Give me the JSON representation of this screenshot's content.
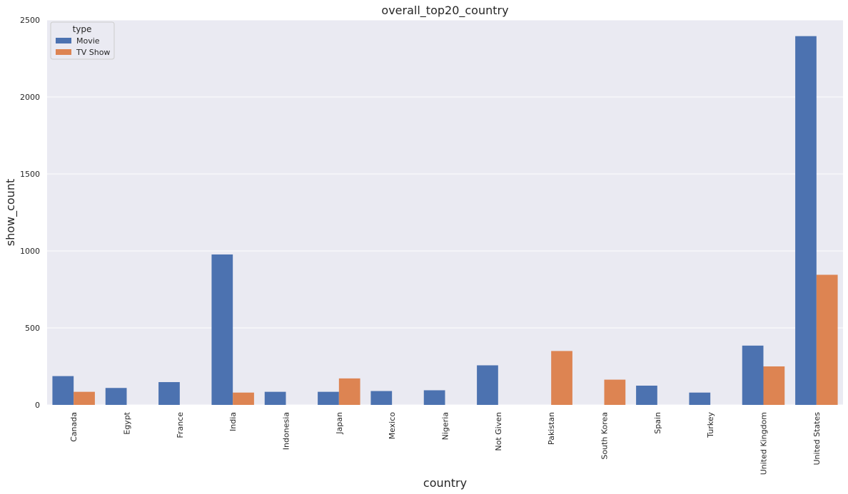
{
  "chart_data": {
    "type": "bar",
    "title": "overall_top20_country",
    "xlabel": "country",
    "ylabel": "show_count",
    "ylim": [
      0,
      2500
    ],
    "yticks": [
      0,
      500,
      1000,
      1500,
      2000,
      2500
    ],
    "grid": true,
    "legend": {
      "title": "type",
      "position": "top-left"
    },
    "categories": [
      "Canada",
      "Egypt",
      "France",
      "India",
      "Indonesia",
      "Japan",
      "Mexico",
      "Nigeria",
      "Not Given",
      "Pakistan",
      "South Korea",
      "Spain",
      "Turkey",
      "United Kingdom",
      "United States"
    ],
    "series": [
      {
        "name": "Movie",
        "color": "#4c72b0",
        "values": [
          187,
          110,
          148,
          977,
          85,
          85,
          90,
          95,
          257,
          null,
          null,
          125,
          80,
          385,
          2395
        ]
      },
      {
        "name": "TV Show",
        "color": "#dd8452",
        "values": [
          85,
          null,
          null,
          80,
          null,
          172,
          null,
          null,
          null,
          350,
          164,
          null,
          null,
          250,
          845
        ]
      }
    ]
  }
}
